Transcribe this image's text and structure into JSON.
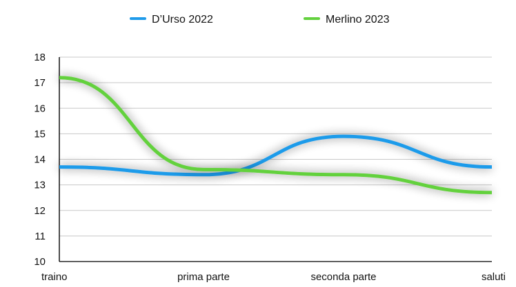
{
  "chart_data": {
    "type": "line",
    "categories": [
      "traino",
      "prima parte",
      "seconda parte",
      "saluti"
    ],
    "series": [
      {
        "name": "D’Urso 2022",
        "values": [
          13.7,
          13.4,
          14.9,
          13.7
        ],
        "color": "#1f9bea"
      },
      {
        "name": "Merlino 2023",
        "values": [
          17.2,
          13.6,
          13.4,
          12.7
        ],
        "color": "#63d13e"
      }
    ],
    "yticks": [
      "10",
      "11",
      "12",
      "13",
      "14",
      "15",
      "16",
      "17",
      "18"
    ],
    "ylim": [
      10,
      18
    ],
    "grid": true,
    "legend_position": "top-center",
    "smooth": true,
    "line_shadow": true
  }
}
